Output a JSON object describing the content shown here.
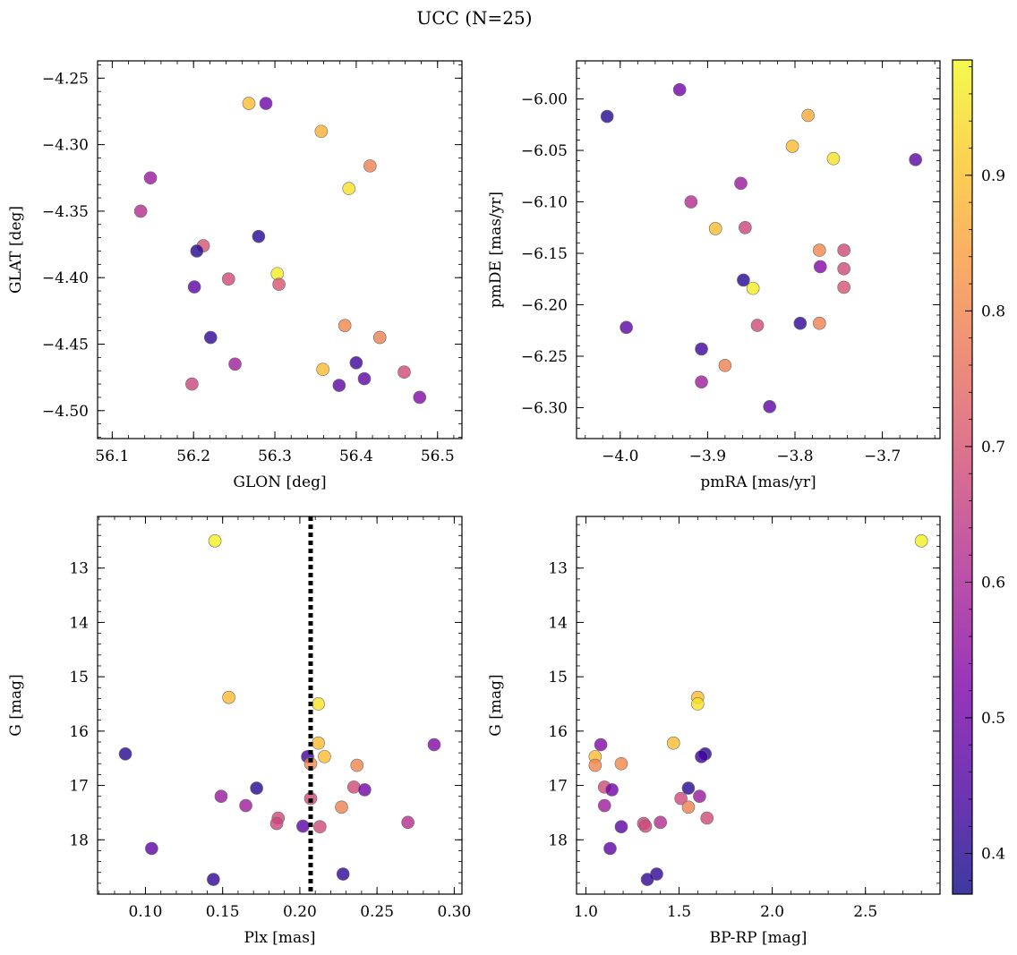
{
  "title": "UCC (N=25)",
  "colorbar": {
    "ticks": [
      0.4,
      0.5,
      0.6,
      0.7,
      0.8,
      0.9
    ],
    "range": [
      0.37,
      0.985
    ],
    "colormap": "plasma"
  },
  "chart_data": [
    {
      "type": "scatter",
      "xlabel": "GLON [deg]",
      "ylabel": "GLAT [deg]",
      "xlim": [
        56.082,
        56.53
      ],
      "ylim": [
        -4.521,
        -4.237
      ],
      "xticks": [
        56.1,
        56.2,
        56.3,
        56.4,
        56.5
      ],
      "xtick_labels": [
        "56.1",
        "56.2",
        "56.3",
        "56.4",
        "56.5"
      ],
      "yticks": [
        -4.25,
        -4.3,
        -4.35,
        -4.4,
        -4.45,
        -4.5
      ],
      "ytick_labels": [
        "−4.25",
        "−4.30",
        "−4.35",
        "−4.40",
        "−4.45",
        "−4.50"
      ],
      "invert_y": false,
      "points": [
        {
          "x": 56.268,
          "y": -4.269,
          "c": 0.89
        },
        {
          "x": 56.289,
          "y": -4.269,
          "c": 0.5
        },
        {
          "x": 56.357,
          "y": -4.29,
          "c": 0.87
        },
        {
          "x": 56.417,
          "y": -4.316,
          "c": 0.79
        },
        {
          "x": 56.391,
          "y": -4.333,
          "c": 0.95
        },
        {
          "x": 56.147,
          "y": -4.325,
          "c": 0.57
        },
        {
          "x": 56.135,
          "y": -4.35,
          "c": 0.62
        },
        {
          "x": 56.28,
          "y": -4.369,
          "c": 0.4
        },
        {
          "x": 56.212,
          "y": -4.376,
          "c": 0.7
        },
        {
          "x": 56.204,
          "y": -4.38,
          "c": 0.4
        },
        {
          "x": 56.303,
          "y": -4.397,
          "c": 0.97
        },
        {
          "x": 56.243,
          "y": -4.401,
          "c": 0.68
        },
        {
          "x": 56.305,
          "y": -4.405,
          "c": 0.7
        },
        {
          "x": 56.201,
          "y": -4.407,
          "c": 0.47
        },
        {
          "x": 56.386,
          "y": -4.436,
          "c": 0.8
        },
        {
          "x": 56.221,
          "y": -4.445,
          "c": 0.41
        },
        {
          "x": 56.429,
          "y": -4.445,
          "c": 0.79
        },
        {
          "x": 56.251,
          "y": -4.465,
          "c": 0.58
        },
        {
          "x": 56.4,
          "y": -4.464,
          "c": 0.43
        },
        {
          "x": 56.359,
          "y": -4.469,
          "c": 0.89
        },
        {
          "x": 56.459,
          "y": -4.471,
          "c": 0.68
        },
        {
          "x": 56.41,
          "y": -4.476,
          "c": 0.47
        },
        {
          "x": 56.379,
          "y": -4.481,
          "c": 0.47
        },
        {
          "x": 56.198,
          "y": -4.48,
          "c": 0.67
        },
        {
          "x": 56.478,
          "y": -4.49,
          "c": 0.53
        }
      ]
    },
    {
      "type": "scatter",
      "xlabel": "pmRA [mas/yr]",
      "ylabel": "pmDE [mas/yr]",
      "xlim": [
        -4.05,
        -3.634
      ],
      "ylim": [
        -6.33,
        -5.963
      ],
      "xticks": [
        -4.0,
        -3.9,
        -3.8,
        -3.7
      ],
      "xtick_labels": [
        "−4.0",
        "−3.9",
        "−3.8",
        "−3.7"
      ],
      "yticks": [
        -6.0,
        -6.05,
        -6.1,
        -6.15,
        -6.2,
        -6.25,
        -6.3
      ],
      "ytick_labels": [
        "−6.00",
        "−6.05",
        "−6.10",
        "−6.15",
        "−6.20",
        "−6.25",
        "−6.30"
      ],
      "invert_y": false,
      "points": [
        {
          "x": -3.932,
          "y": -5.991,
          "c": 0.5
        },
        {
          "x": -4.015,
          "y": -6.017,
          "c": 0.4
        },
        {
          "x": -3.785,
          "y": -6.016,
          "c": 0.86
        },
        {
          "x": -3.803,
          "y": -6.046,
          "c": 0.89
        },
        {
          "x": -3.756,
          "y": -6.058,
          "c": 0.95
        },
        {
          "x": -3.662,
          "y": -6.059,
          "c": 0.47
        },
        {
          "x": -3.862,
          "y": -6.082,
          "c": 0.57
        },
        {
          "x": -3.919,
          "y": -6.1,
          "c": 0.62
        },
        {
          "x": -3.891,
          "y": -6.126,
          "c": 0.89
        },
        {
          "x": -3.857,
          "y": -6.125,
          "c": 0.67
        },
        {
          "x": -3.772,
          "y": -6.147,
          "c": 0.8
        },
        {
          "x": -3.744,
          "y": -6.147,
          "c": 0.68
        },
        {
          "x": -3.771,
          "y": -6.163,
          "c": 0.53
        },
        {
          "x": -3.744,
          "y": -6.165,
          "c": 0.68
        },
        {
          "x": -3.859,
          "y": -6.176,
          "c": 0.4
        },
        {
          "x": -3.848,
          "y": -6.184,
          "c": 0.97
        },
        {
          "x": -3.744,
          "y": -6.183,
          "c": 0.7
        },
        {
          "x": -3.993,
          "y": -6.222,
          "c": 0.47
        },
        {
          "x": -3.843,
          "y": -6.22,
          "c": 0.68
        },
        {
          "x": -3.794,
          "y": -6.218,
          "c": 0.41
        },
        {
          "x": -3.772,
          "y": -6.218,
          "c": 0.79
        },
        {
          "x": -3.907,
          "y": -6.243,
          "c": 0.43
        },
        {
          "x": -3.88,
          "y": -6.259,
          "c": 0.79
        },
        {
          "x": -3.907,
          "y": -6.275,
          "c": 0.58
        },
        {
          "x": -3.829,
          "y": -6.299,
          "c": 0.47
        }
      ]
    },
    {
      "type": "scatter",
      "xlabel": "Plx [mas]",
      "ylabel": "G [mag]",
      "xlim": [
        0.069,
        0.305
      ],
      "ylim": [
        19.0,
        12.05
      ],
      "xticks": [
        0.1,
        0.15,
        0.2,
        0.25,
        0.3
      ],
      "xtick_labels": [
        "0.10",
        "0.15",
        "0.20",
        "0.25",
        "0.30"
      ],
      "yticks": [
        13,
        14,
        15,
        16,
        17,
        18
      ],
      "ytick_labels": [
        "13",
        "14",
        "15",
        "16",
        "17",
        "18"
      ],
      "invert_y": true,
      "vline": 0.207,
      "points": [
        {
          "x": 0.145,
          "y": 12.5,
          "c": 0.97
        },
        {
          "x": 0.154,
          "y": 15.38,
          "c": 0.89
        },
        {
          "x": 0.212,
          "y": 15.5,
          "c": 0.95
        },
        {
          "x": 0.212,
          "y": 16.22,
          "c": 0.89
        },
        {
          "x": 0.216,
          "y": 16.47,
          "c": 0.89
        },
        {
          "x": 0.087,
          "y": 16.42,
          "c": 0.4
        },
        {
          "x": 0.287,
          "y": 16.25,
          "c": 0.53
        },
        {
          "x": 0.205,
          "y": 16.47,
          "c": 0.43
        },
        {
          "x": 0.207,
          "y": 16.6,
          "c": 0.8
        },
        {
          "x": 0.237,
          "y": 16.63,
          "c": 0.8
        },
        {
          "x": 0.172,
          "y": 17.05,
          "c": 0.4
        },
        {
          "x": 0.235,
          "y": 17.03,
          "c": 0.68
        },
        {
          "x": 0.242,
          "y": 17.08,
          "c": 0.5
        },
        {
          "x": 0.149,
          "y": 17.2,
          "c": 0.57
        },
        {
          "x": 0.207,
          "y": 17.24,
          "c": 0.68
        },
        {
          "x": 0.165,
          "y": 17.37,
          "c": 0.58
        },
        {
          "x": 0.227,
          "y": 17.4,
          "c": 0.79
        },
        {
          "x": 0.186,
          "y": 17.6,
          "c": 0.68
        },
        {
          "x": 0.185,
          "y": 17.7,
          "c": 0.67
        },
        {
          "x": 0.27,
          "y": 17.68,
          "c": 0.62
        },
        {
          "x": 0.202,
          "y": 17.75,
          "c": 0.47
        },
        {
          "x": 0.213,
          "y": 17.76,
          "c": 0.68
        },
        {
          "x": 0.104,
          "y": 18.16,
          "c": 0.47
        },
        {
          "x": 0.228,
          "y": 18.63,
          "c": 0.41
        },
        {
          "x": 0.144,
          "y": 18.73,
          "c": 0.41
        }
      ]
    },
    {
      "type": "scatter",
      "xlabel": "BP-RP [mag]",
      "ylabel": "G [mag]",
      "xlim": [
        0.95,
        2.9
      ],
      "ylim": [
        19.0,
        12.05
      ],
      "xticks": [
        1.0,
        1.5,
        2.0,
        2.5
      ],
      "xtick_labels": [
        "1.0",
        "1.5",
        "2.0",
        "2.5"
      ],
      "yticks": [
        13,
        14,
        15,
        16,
        17,
        18
      ],
      "ytick_labels": [
        "13",
        "14",
        "15",
        "16",
        "17",
        "18"
      ],
      "invert_y": true,
      "points": [
        {
          "x": 2.8,
          "y": 12.5,
          "c": 0.97
        },
        {
          "x": 1.6,
          "y": 15.38,
          "c": 0.89
        },
        {
          "x": 1.6,
          "y": 15.5,
          "c": 0.95
        },
        {
          "x": 1.47,
          "y": 16.22,
          "c": 0.89
        },
        {
          "x": 1.08,
          "y": 16.25,
          "c": 0.53
        },
        {
          "x": 1.64,
          "y": 16.42,
          "c": 0.4
        },
        {
          "x": 1.62,
          "y": 16.47,
          "c": 0.43
        },
        {
          "x": 1.05,
          "y": 16.47,
          "c": 0.89
        },
        {
          "x": 1.19,
          "y": 16.6,
          "c": 0.8
        },
        {
          "x": 1.05,
          "y": 16.63,
          "c": 0.8
        },
        {
          "x": 1.1,
          "y": 17.03,
          "c": 0.68
        },
        {
          "x": 1.55,
          "y": 17.05,
          "c": 0.4
        },
        {
          "x": 1.14,
          "y": 17.08,
          "c": 0.5
        },
        {
          "x": 1.61,
          "y": 17.2,
          "c": 0.57
        },
        {
          "x": 1.51,
          "y": 17.24,
          "c": 0.68
        },
        {
          "x": 1.1,
          "y": 17.37,
          "c": 0.58
        },
        {
          "x": 1.55,
          "y": 17.4,
          "c": 0.79
        },
        {
          "x": 1.65,
          "y": 17.6,
          "c": 0.68
        },
        {
          "x": 1.4,
          "y": 17.68,
          "c": 0.62
        },
        {
          "x": 1.31,
          "y": 17.7,
          "c": 0.67
        },
        {
          "x": 1.32,
          "y": 17.75,
          "c": 0.68
        },
        {
          "x": 1.19,
          "y": 17.76,
          "c": 0.47
        },
        {
          "x": 1.13,
          "y": 18.16,
          "c": 0.47
        },
        {
          "x": 1.38,
          "y": 18.63,
          "c": 0.41
        },
        {
          "x": 1.33,
          "y": 18.73,
          "c": 0.41
        }
      ]
    }
  ]
}
